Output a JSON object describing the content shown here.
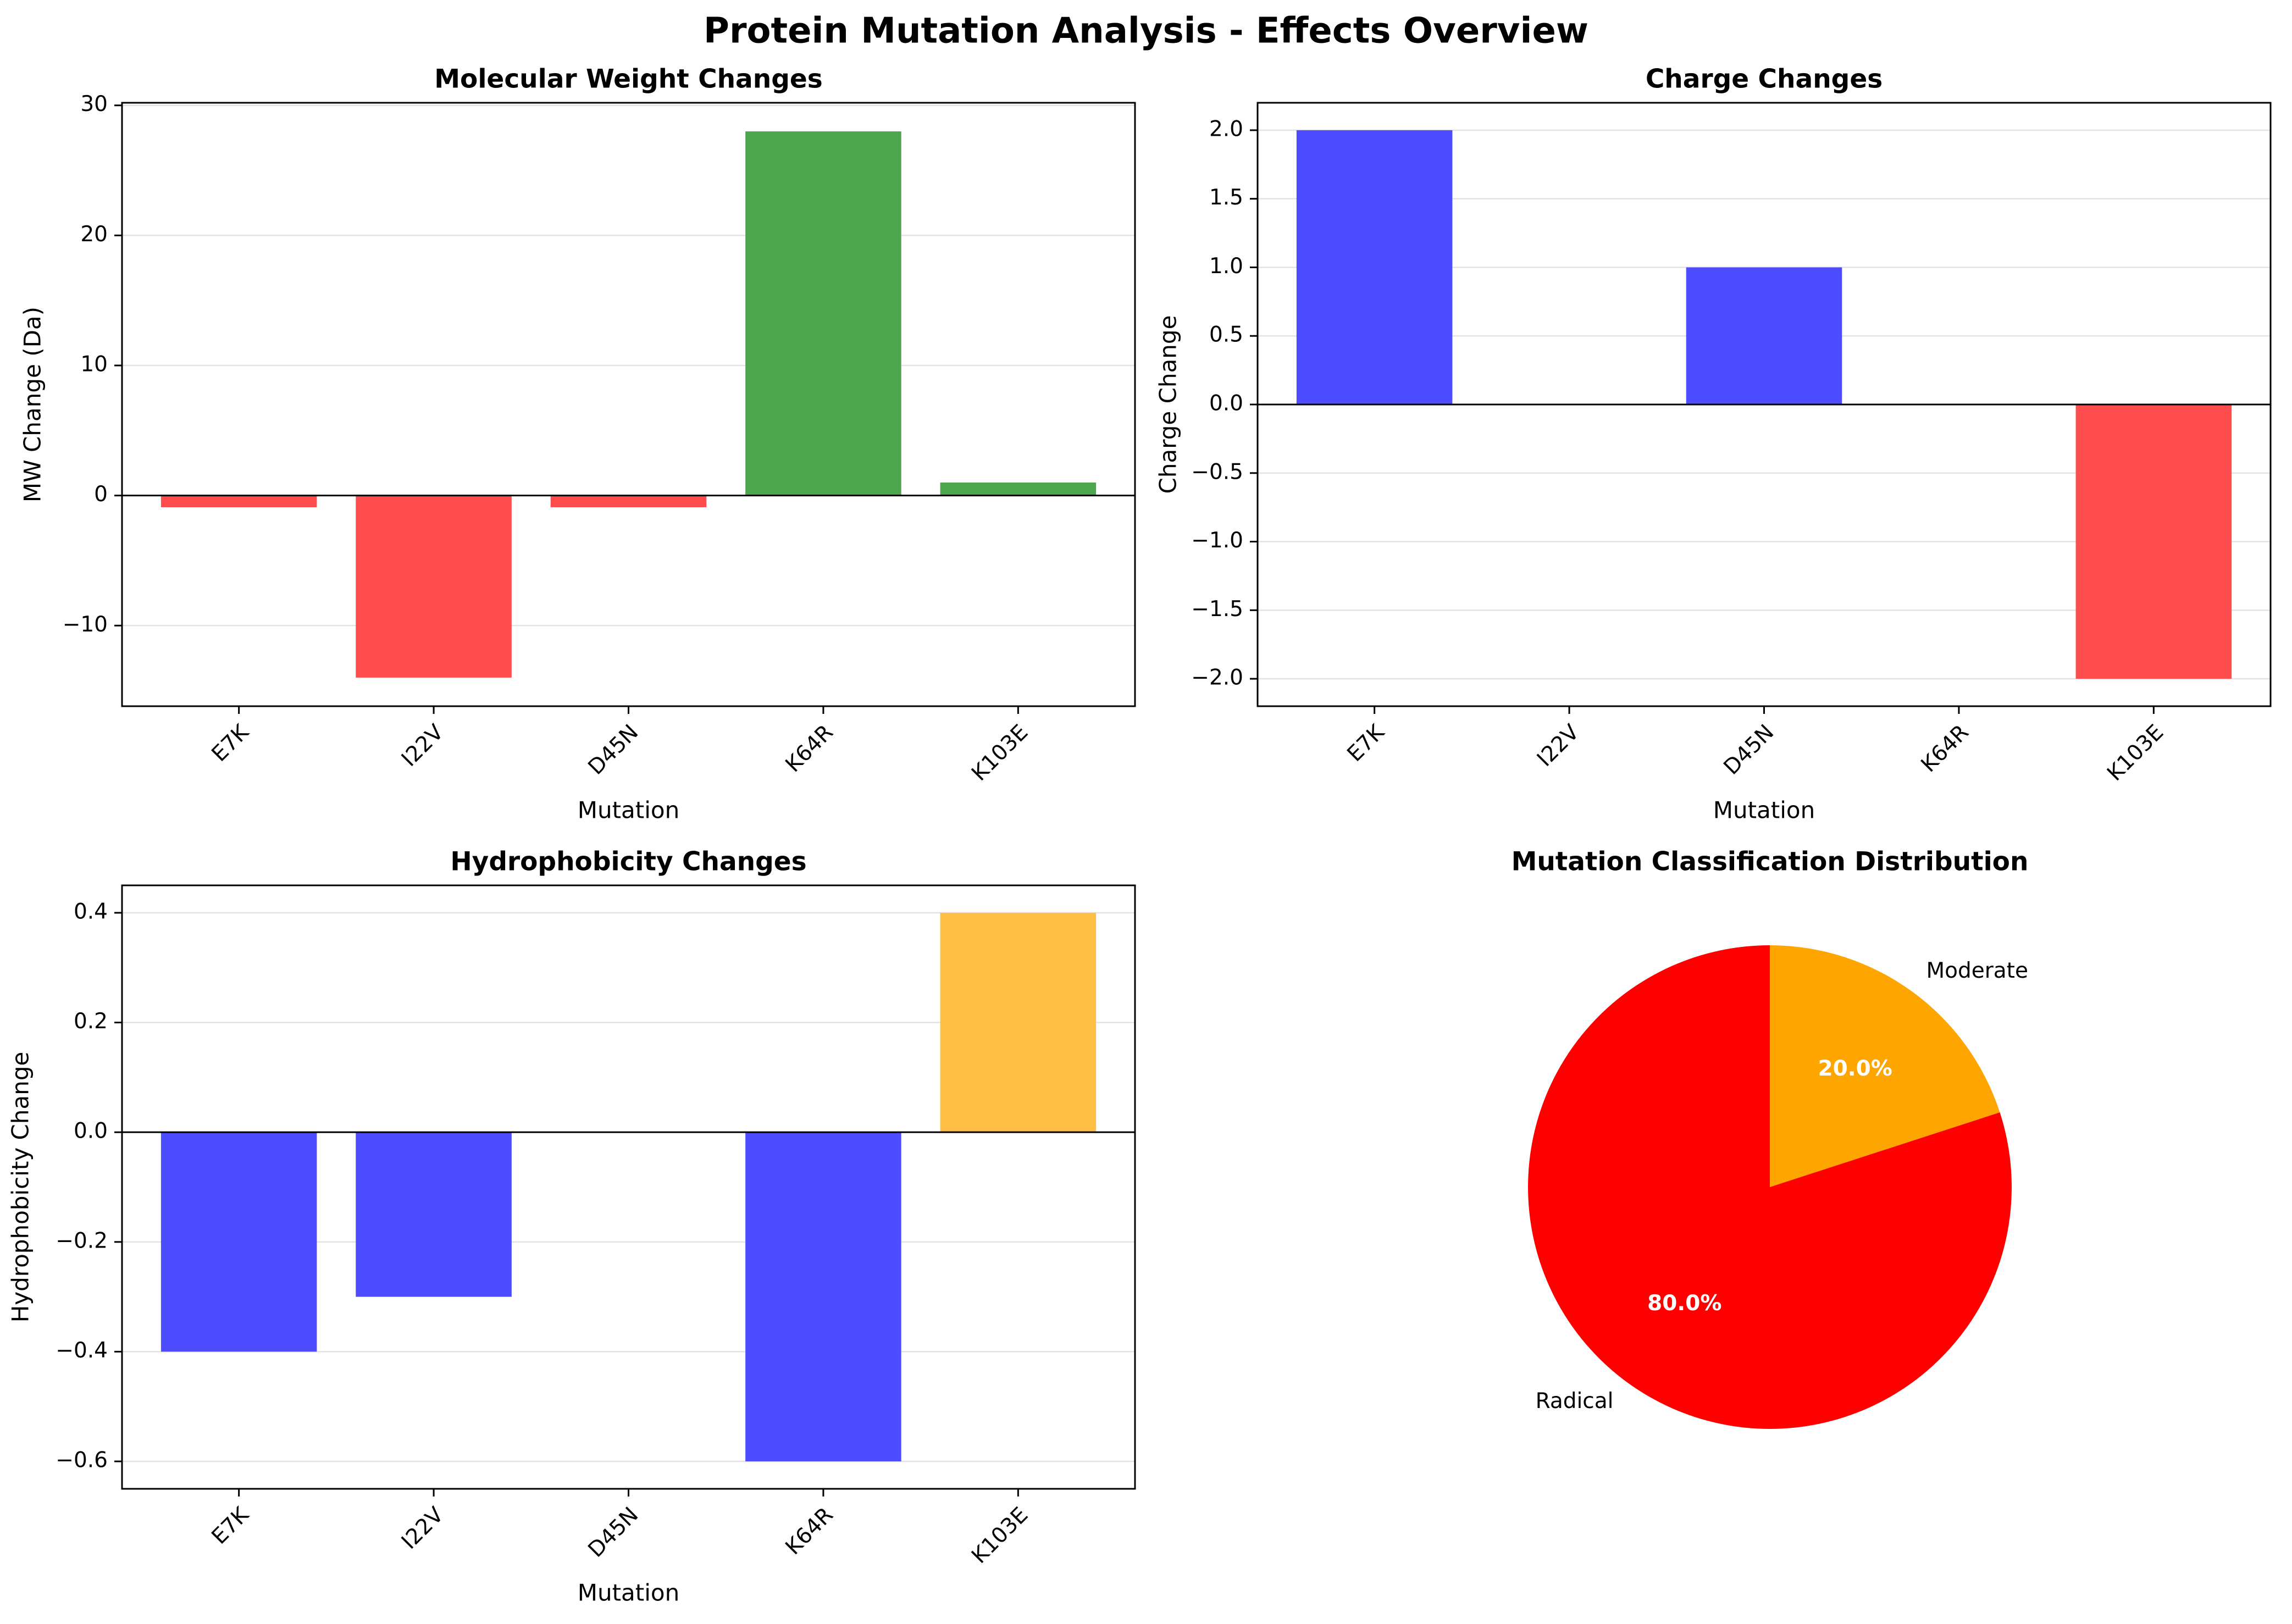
{
  "figure_title": "Protein Mutation Analysis - Effects Overview",
  "chart_data": [
    {
      "type": "bar",
      "title": "Molecular Weight Changes",
      "xlabel": "Mutation",
      "ylabel": "MW Change (Da)",
      "categories": [
        "E7K",
        "I22V",
        "D45N",
        "K64R",
        "K103E"
      ],
      "values": [
        -0.9,
        -14.0,
        -0.9,
        28.0,
        1.0
      ],
      "colors": [
        "#ff4d4d",
        "#ff4d4d",
        "#ff4d4d",
        "#4da64d",
        "#4da64d"
      ],
      "ylim": [
        -16.2,
        30.2
      ],
      "yticks": [
        -10,
        0,
        10,
        20,
        30
      ],
      "ytick_labels": [
        "−10",
        "0",
        "10",
        "20",
        "30"
      ],
      "grid": "y",
      "zero_line": true
    },
    {
      "type": "bar",
      "title": "Charge Changes",
      "xlabel": "Mutation",
      "ylabel": "Charge Change",
      "categories": [
        "E7K",
        "I22V",
        "D45N",
        "K64R",
        "K103E"
      ],
      "values": [
        2.0,
        0.0,
        1.0,
        0.0,
        -2.0
      ],
      "colors": [
        "#4d4dff",
        "#ff4d4d",
        "#4d4dff",
        "#ff4d4d",
        "#ff4d4d"
      ],
      "ylim": [
        -2.2,
        2.2
      ],
      "yticks": [
        -2.0,
        -1.5,
        -1.0,
        -0.5,
        0.0,
        0.5,
        1.0,
        1.5,
        2.0
      ],
      "ytick_labels": [
        "−2.0",
        "−1.5",
        "−1.0",
        "−0.5",
        "0.0",
        "0.5",
        "1.0",
        "1.5",
        "2.0"
      ],
      "grid": "y",
      "zero_line": true
    },
    {
      "type": "bar",
      "title": "Hydrophobicity Changes",
      "xlabel": "Mutation",
      "ylabel": "Hydrophobicity Change",
      "categories": [
        "E7K",
        "I22V",
        "D45N",
        "K64R",
        "K103E"
      ],
      "values": [
        -0.4,
        -0.3,
        0.0,
        -0.6,
        0.4
      ],
      "colors": [
        "#4d4dff",
        "#4d4dff",
        "#4d4dff",
        "#4d4dff",
        "#ffbf47"
      ],
      "ylim": [
        -0.65,
        0.45
      ],
      "yticks": [
        -0.6,
        -0.4,
        -0.2,
        0.0,
        0.2,
        0.4
      ],
      "ytick_labels": [
        "−0.6",
        "−0.4",
        "−0.2",
        "0.0",
        "0.2",
        "0.4"
      ],
      "grid": "y",
      "zero_line": true
    },
    {
      "type": "pie",
      "title": "Mutation Classification Distribution",
      "labels": [
        "Moderate",
        "Radical"
      ],
      "values": [
        20.0,
        80.0
      ],
      "pct_labels": [
        "20.0%",
        "80.0%"
      ],
      "colors": [
        "#ffa500",
        "#ff0000"
      ],
      "startangle": 90,
      "direction": "clockwise"
    }
  ]
}
